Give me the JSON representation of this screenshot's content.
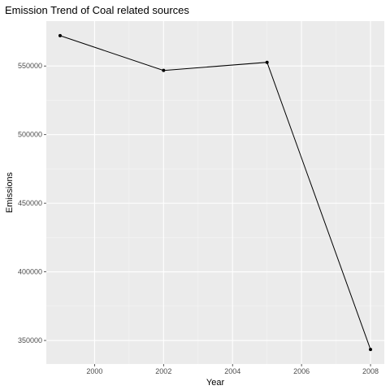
{
  "chart_data": {
    "type": "line",
    "title": "Emission Trend of Coal related sources",
    "xlabel": "Year",
    "ylabel": "Emissions",
    "x": [
      1999,
      2002,
      2005,
      2008
    ],
    "series": [
      {
        "values": [
          572126,
          546789,
          552675,
          343432
        ]
      }
    ],
    "xticks": [
      2000,
      2002,
      2004,
      2006,
      2008
    ],
    "xtick_labels": [
      "2000",
      "2002",
      "2004",
      "2006",
      "2008"
    ],
    "yticks": [
      350000,
      400000,
      450000,
      500000,
      550000
    ],
    "ytick_labels": [
      "350000",
      "400000",
      "450000",
      "500000",
      "550000"
    ],
    "xlim": [
      1998.6,
      2008.4
    ],
    "ylim": [
      332850,
      582700
    ],
    "grid": true,
    "colors": {
      "panel": "#ebebeb",
      "grid_major": "#ffffff",
      "grid_minor": "#f5f5f5",
      "line": "#000000",
      "point": "#000000",
      "tick": "#333333"
    }
  }
}
